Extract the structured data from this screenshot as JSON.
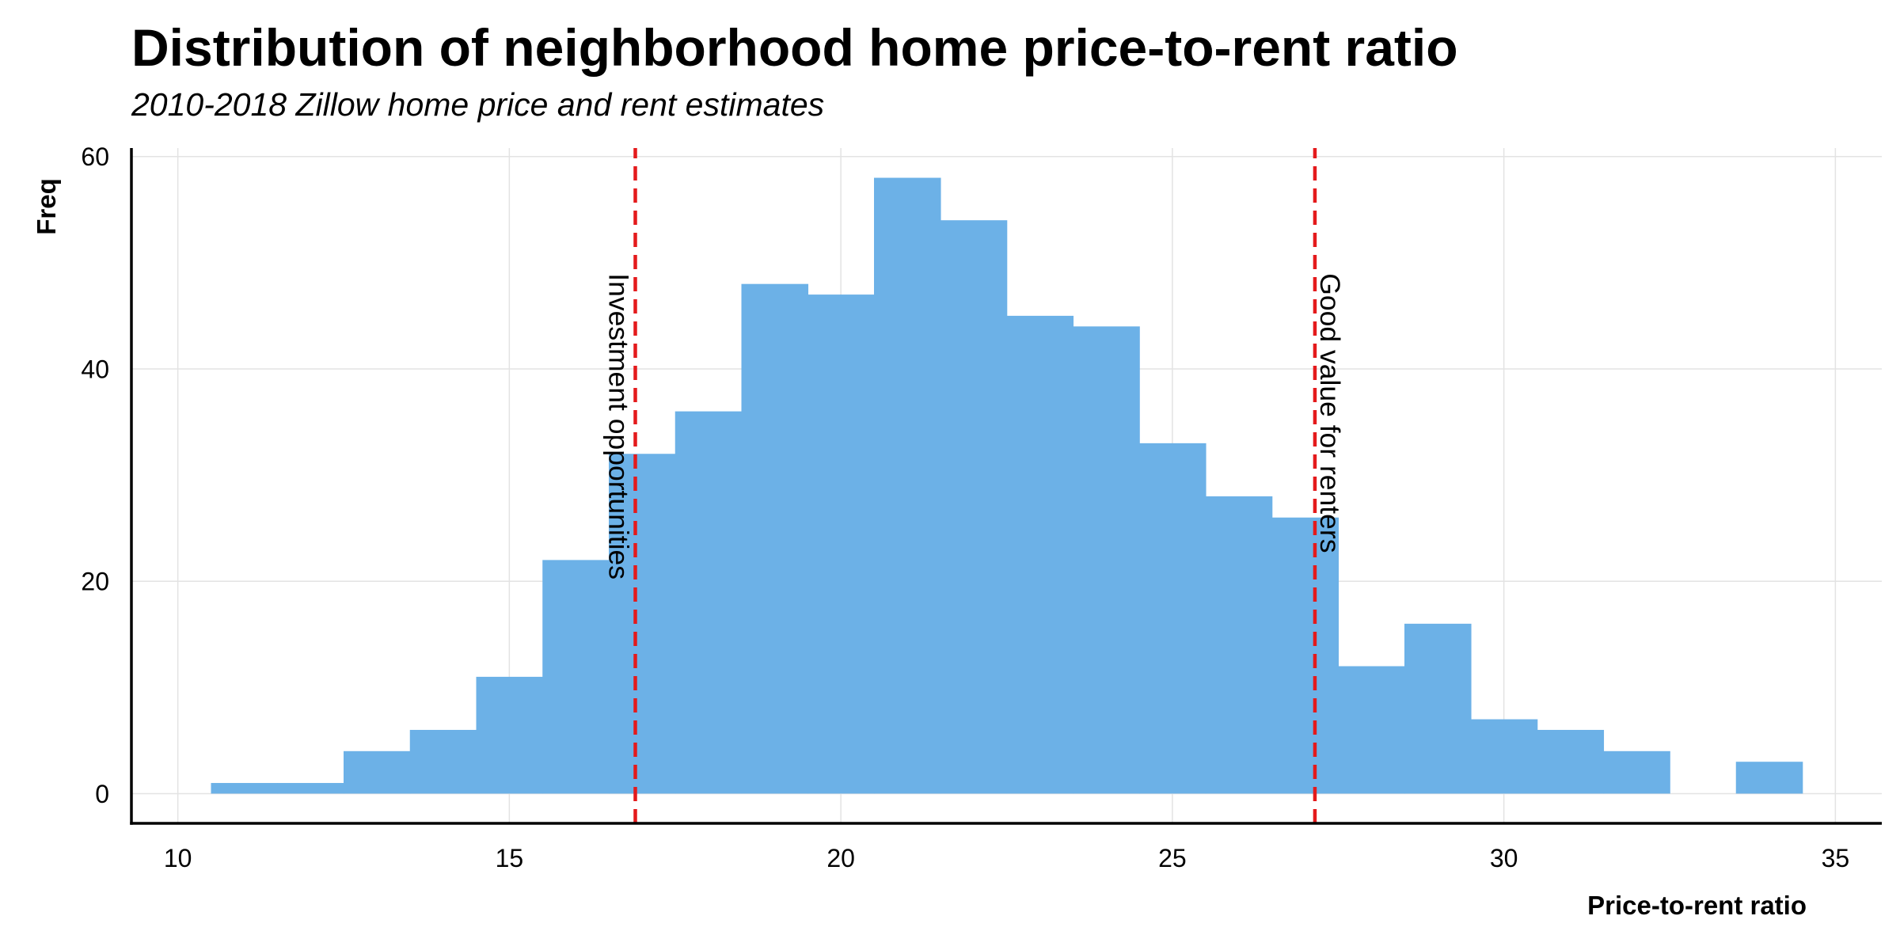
{
  "chart_data": {
    "type": "bar",
    "title": "Distribution of neighborhood home price-to-rent ratio",
    "subtitle": "2010-2018 Zillow home price and rent estimates",
    "xlabel": "Price-to-rent ratio",
    "ylabel": "Freq",
    "bin_width": 1,
    "x": [
      11,
      12,
      13,
      14,
      15,
      16,
      17,
      18,
      19,
      20,
      21,
      22,
      23,
      24,
      25,
      26,
      27,
      28,
      29,
      30,
      31,
      32,
      33,
      34
    ],
    "values": [
      1,
      1,
      4,
      6,
      11,
      22,
      32,
      36,
      48,
      47,
      58,
      54,
      45,
      44,
      33,
      28,
      26,
      12,
      16,
      7,
      6,
      4,
      0,
      3
    ],
    "xlim": [
      9.3,
      35.7
    ],
    "ylim": [
      -2.8,
      60.8
    ],
    "x_ticks": [
      10,
      15,
      20,
      25,
      30,
      35
    ],
    "x_tick_labels": [
      "10",
      "15",
      "20",
      "25",
      "30",
      "35"
    ],
    "y_ticks": [
      0,
      20,
      40,
      60
    ],
    "y_tick_labels": [
      "0",
      "20",
      "40",
      "60"
    ],
    "grid": true,
    "legend": "none",
    "reference_lines": [
      {
        "x": 16.9,
        "label": "Investment opportunities",
        "label_side": "left"
      },
      {
        "x": 27.15,
        "label": "Good value for renters",
        "label_side": "right"
      }
    ]
  },
  "colors": {
    "bar": "#6cb1e7",
    "reference_line": "#e41a1c",
    "grid": "#e3e3e3",
    "axis": "#000000"
  }
}
